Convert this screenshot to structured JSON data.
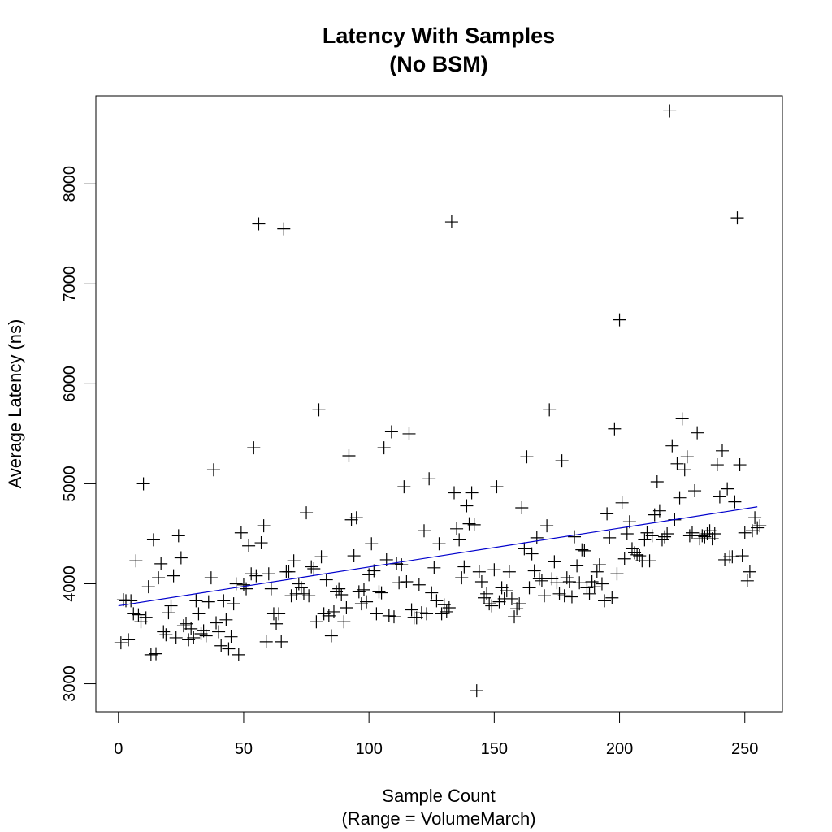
{
  "chart_data": {
    "type": "scatter",
    "title": "Latency With Samples",
    "subtitle": "(No BSM)",
    "xlabel": "Sample Count",
    "xlabel_sub": "(Range = VolumeMarch)",
    "ylabel": "Average Latency (ns)",
    "xlim": [
      -9,
      265
    ],
    "ylim": [
      2720,
      8880
    ],
    "xticks": [
      0,
      50,
      100,
      150,
      200,
      250
    ],
    "xtick_labels": [
      "0",
      "50",
      "100",
      "150",
      "200",
      "250"
    ],
    "yticks": [
      3000,
      4000,
      5000,
      6000,
      7000,
      8000
    ],
    "ytick_labels": [
      "3000",
      "4000",
      "5000",
      "6000",
      "7000",
      "8000"
    ],
    "marker": "plus",
    "grid": false,
    "trend_line": {
      "x": [
        0,
        255
      ],
      "y": [
        3780,
        4770
      ],
      "color": "#0000cc"
    },
    "points": [
      [
        1,
        3410
      ],
      [
        2,
        3840
      ],
      [
        3,
        3830
      ],
      [
        4,
        3440
      ],
      [
        5,
        3830
      ],
      [
        6,
        3700
      ],
      [
        7,
        4230
      ],
      [
        8,
        3690
      ],
      [
        9,
        3620
      ],
      [
        10,
        5000
      ],
      [
        11,
        3660
      ],
      [
        12,
        3970
      ],
      [
        13,
        3290
      ],
      [
        14,
        4440
      ],
      [
        15,
        3300
      ],
      [
        16,
        4060
      ],
      [
        17,
        4200
      ],
      [
        18,
        3520
      ],
      [
        19,
        3490
      ],
      [
        20,
        3710
      ],
      [
        21,
        3780
      ],
      [
        22,
        4080
      ],
      [
        23,
        3460
      ],
      [
        24,
        4480
      ],
      [
        25,
        4260
      ],
      [
        26,
        3580
      ],
      [
        27,
        3600
      ],
      [
        28,
        3440
      ],
      [
        29,
        3550
      ],
      [
        30,
        3460
      ],
      [
        31,
        3830
      ],
      [
        32,
        3700
      ],
      [
        33,
        3500
      ],
      [
        34,
        3530
      ],
      [
        35,
        3480
      ],
      [
        36,
        3820
      ],
      [
        37,
        4060
      ],
      [
        38,
        5140
      ],
      [
        39,
        3610
      ],
      [
        40,
        3520
      ],
      [
        41,
        3380
      ],
      [
        42,
        3830
      ],
      [
        43,
        3640
      ],
      [
        44,
        3350
      ],
      [
        45,
        3470
      ],
      [
        46,
        3800
      ],
      [
        47,
        4000
      ],
      [
        48,
        3290
      ],
      [
        49,
        4510
      ],
      [
        50,
        3990
      ],
      [
        51,
        3950
      ],
      [
        52,
        4380
      ],
      [
        53,
        4100
      ],
      [
        54,
        5360
      ],
      [
        55,
        4080
      ],
      [
        56,
        7600
      ],
      [
        57,
        4410
      ],
      [
        58,
        4580
      ],
      [
        59,
        3420
      ],
      [
        60,
        4100
      ],
      [
        61,
        3950
      ],
      [
        62,
        3700
      ],
      [
        63,
        3600
      ],
      [
        64,
        3700
      ],
      [
        65,
        3420
      ],
      [
        66,
        7550
      ],
      [
        67,
        4120
      ],
      [
        68,
        4120
      ],
      [
        69,
        3880
      ],
      [
        70,
        4230
      ],
      [
        71,
        3900
      ],
      [
        72,
        4000
      ],
      [
        73,
        3960
      ],
      [
        74,
        3900
      ],
      [
        75,
        4710
      ],
      [
        76,
        3880
      ],
      [
        77,
        4170
      ],
      [
        78,
        4150
      ],
      [
        79,
        3620
      ],
      [
        80,
        5740
      ],
      [
        81,
        4270
      ],
      [
        82,
        3700
      ],
      [
        83,
        4040
      ],
      [
        84,
        3680
      ],
      [
        85,
        3480
      ],
      [
        86,
        3720
      ],
      [
        87,
        3920
      ],
      [
        88,
        3950
      ],
      [
        89,
        3890
      ],
      [
        90,
        3620
      ],
      [
        91,
        3760
      ],
      [
        92,
        5280
      ],
      [
        93,
        4640
      ],
      [
        94,
        4280
      ],
      [
        95,
        4660
      ],
      [
        96,
        3920
      ],
      [
        97,
        3800
      ],
      [
        98,
        3940
      ],
      [
        99,
        3820
      ],
      [
        100,
        4090
      ],
      [
        101,
        4400
      ],
      [
        102,
        4130
      ],
      [
        103,
        3700
      ],
      [
        104,
        3920
      ],
      [
        105,
        3910
      ],
      [
        106,
        5360
      ],
      [
        107,
        4240
      ],
      [
        108,
        3680
      ],
      [
        109,
        5520
      ],
      [
        110,
        3670
      ],
      [
        111,
        4200
      ],
      [
        112,
        4010
      ],
      [
        113,
        4190
      ],
      [
        114,
        4970
      ],
      [
        115,
        4020
      ],
      [
        116,
        5500
      ],
      [
        117,
        3740
      ],
      [
        118,
        3660
      ],
      [
        119,
        3660
      ],
      [
        120,
        3990
      ],
      [
        121,
        3710
      ],
      [
        122,
        4530
      ],
      [
        123,
        3700
      ],
      [
        124,
        5050
      ],
      [
        125,
        3910
      ],
      [
        126,
        4160
      ],
      [
        127,
        3830
      ],
      [
        128,
        4400
      ],
      [
        129,
        3700
      ],
      [
        130,
        3790
      ],
      [
        131,
        3720
      ],
      [
        132,
        3760
      ],
      [
        133,
        7620
      ],
      [
        134,
        4910
      ],
      [
        135,
        4550
      ],
      [
        136,
        4440
      ],
      [
        137,
        4060
      ],
      [
        138,
        4170
      ],
      [
        139,
        4780
      ],
      [
        140,
        4600
      ],
      [
        141,
        4910
      ],
      [
        142,
        4590
      ],
      [
        143,
        2930
      ],
      [
        144,
        4120
      ],
      [
        145,
        4020
      ],
      [
        146,
        3860
      ],
      [
        147,
        3900
      ],
      [
        148,
        3800
      ],
      [
        149,
        3780
      ],
      [
        150,
        4140
      ],
      [
        151,
        4970
      ],
      [
        152,
        3820
      ],
      [
        153,
        3960
      ],
      [
        154,
        3850
      ],
      [
        155,
        3930
      ],
      [
        156,
        4120
      ],
      [
        157,
        3850
      ],
      [
        158,
        3670
      ],
      [
        159,
        3750
      ],
      [
        160,
        3800
      ],
      [
        161,
        4760
      ],
      [
        162,
        4350
      ],
      [
        163,
        5270
      ],
      [
        164,
        3960
      ],
      [
        165,
        4300
      ],
      [
        166,
        4130
      ],
      [
        167,
        4460
      ],
      [
        168,
        4050
      ],
      [
        169,
        4030
      ],
      [
        170,
        3880
      ],
      [
        171,
        4580
      ],
      [
        172,
        5740
      ],
      [
        173,
        4050
      ],
      [
        174,
        4220
      ],
      [
        175,
        4010
      ],
      [
        176,
        3900
      ],
      [
        177,
        5230
      ],
      [
        178,
        3880
      ],
      [
        179,
        4060
      ],
      [
        180,
        4020
      ],
      [
        181,
        3870
      ],
      [
        182,
        4470
      ],
      [
        183,
        4180
      ],
      [
        184,
        4010
      ],
      [
        185,
        4340
      ],
      [
        186,
        4330
      ],
      [
        187,
        3960
      ],
      [
        188,
        3900
      ],
      [
        189,
        4020
      ],
      [
        190,
        3970
      ],
      [
        191,
        4120
      ],
      [
        192,
        4190
      ],
      [
        193,
        4000
      ],
      [
        194,
        3830
      ],
      [
        195,
        4700
      ],
      [
        196,
        4460
      ],
      [
        197,
        3860
      ],
      [
        198,
        5550
      ],
      [
        199,
        4100
      ],
      [
        200,
        6640
      ],
      [
        201,
        4810
      ],
      [
        202,
        4250
      ],
      [
        203,
        4500
      ],
      [
        204,
        4620
      ],
      [
        205,
        4350
      ],
      [
        206,
        4310
      ],
      [
        207,
        4290
      ],
      [
        208,
        4280
      ],
      [
        209,
        4230
      ],
      [
        210,
        4440
      ],
      [
        211,
        4510
      ],
      [
        212,
        4230
      ],
      [
        213,
        4480
      ],
      [
        214,
        4690
      ],
      [
        215,
        5020
      ],
      [
        216,
        4730
      ],
      [
        217,
        4440
      ],
      [
        218,
        4470
      ],
      [
        219,
        4500
      ],
      [
        220,
        8730
      ],
      [
        221,
        5380
      ],
      [
        222,
        4640
      ],
      [
        223,
        5200
      ],
      [
        224,
        4860
      ],
      [
        225,
        5650
      ],
      [
        226,
        5140
      ],
      [
        227,
        5270
      ],
      [
        228,
        4480
      ],
      [
        229,
        4510
      ],
      [
        230,
        4930
      ],
      [
        231,
        5510
      ],
      [
        232,
        4450
      ],
      [
        233,
        4480
      ],
      [
        234,
        4470
      ],
      [
        235,
        4500
      ],
      [
        236,
        4530
      ],
      [
        237,
        4450
      ],
      [
        238,
        4500
      ],
      [
        239,
        5190
      ],
      [
        240,
        4870
      ],
      [
        241,
        5330
      ],
      [
        242,
        4240
      ],
      [
        243,
        4950
      ],
      [
        244,
        4270
      ],
      [
        245,
        4270
      ],
      [
        246,
        4820
      ],
      [
        247,
        7660
      ],
      [
        248,
        5190
      ],
      [
        249,
        4280
      ],
      [
        250,
        4510
      ],
      [
        251,
        4030
      ],
      [
        252,
        4120
      ],
      [
        253,
        4530
      ],
      [
        254,
        4660
      ],
      [
        255,
        4560
      ],
      [
        256,
        4580
      ]
    ]
  }
}
